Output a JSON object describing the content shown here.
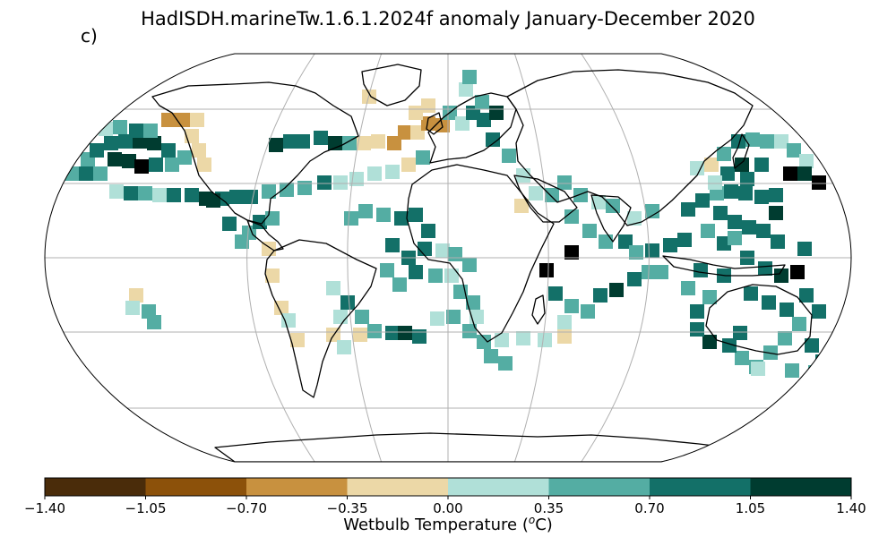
{
  "title": "HadISDH.marineTw.1.6.1.2024f anomaly January-December 2020",
  "panel_label": "c)",
  "colorbar": {
    "label": "Wetbulb Temperature (",
    "label_sup": "o",
    "label_end": "C)",
    "ticks": [
      "−1.40",
      "−1.05",
      "−0.70",
      "−0.35",
      "0.00",
      "0.35",
      "0.70",
      "1.05",
      "1.40"
    ],
    "colors": [
      "#543005",
      "#8c510a",
      "#bf812d",
      "#dfc27d",
      "#c7eae5",
      "#80cdc1",
      "#35978f",
      "#01665e",
      "#003c30"
    ],
    "display_colors": [
      "#4a2c0a",
      "#8c510a",
      "#c8913f",
      "#ecd8a7",
      "#b0e0d8",
      "#54ada3",
      "#137068",
      "#003c30"
    ]
  },
  "map": {
    "projection": "Robinson",
    "gridlines": true,
    "meridians_deg": [
      -120,
      -60,
      0,
      60,
      120
    ],
    "parallels_deg": [
      -60,
      -30,
      0,
      30,
      60
    ]
  }
}
